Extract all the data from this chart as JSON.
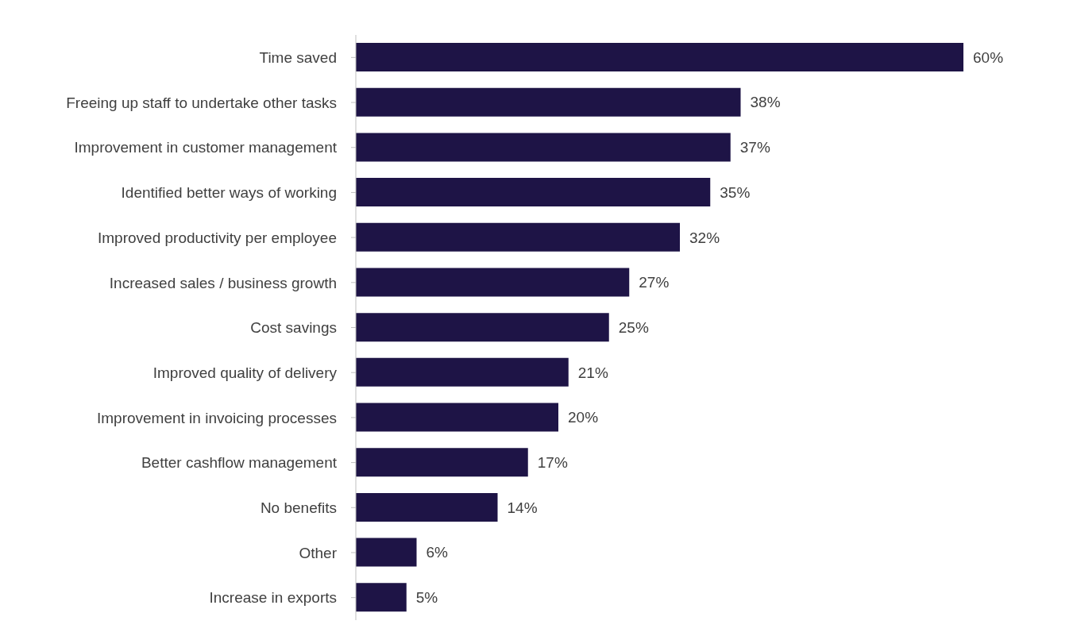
{
  "chart_data": {
    "type": "bar",
    "orientation": "horizontal",
    "categories": [
      "Time saved",
      "Freeing up staff to undertake other tasks",
      "Improvement in customer management",
      "Identified better ways of working",
      "Improved productivity per employee",
      "Increased sales / business growth",
      "Cost savings",
      "Improved quality of delivery",
      "Improvement in invoicing processes",
      "Better cashflow management",
      "No benefits",
      "Other",
      "Increase in exports"
    ],
    "values": [
      60,
      38,
      37,
      35,
      32,
      27,
      25,
      21,
      20,
      17,
      14,
      6,
      5
    ],
    "value_labels": [
      "60%",
      "38%",
      "37%",
      "35%",
      "32%",
      "27%",
      "25%",
      "21%",
      "20%",
      "17%",
      "14%",
      "6%",
      "5%"
    ],
    "color": "#1e1446",
    "grid": false,
    "legend": false
  }
}
